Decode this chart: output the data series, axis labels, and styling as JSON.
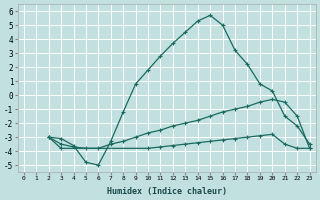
{
  "xlabel": "Humidex (Indice chaleur)",
  "bg_color": "#c2e0e0",
  "grid_color": "#b0d0d0",
  "line_color": "#1a6a60",
  "xlim": [
    -0.5,
    23.5
  ],
  "ylim": [
    -5.5,
    6.5
  ],
  "xticks": [
    0,
    1,
    2,
    3,
    4,
    5,
    6,
    7,
    8,
    9,
    10,
    11,
    12,
    13,
    14,
    15,
    16,
    17,
    18,
    19,
    20,
    21,
    22,
    23
  ],
  "yticks": [
    -5,
    -4,
    -3,
    -2,
    -1,
    0,
    1,
    2,
    3,
    4,
    5,
    6
  ],
  "line1_x": [
    2,
    3,
    4,
    5,
    6,
    7,
    8,
    9,
    10,
    11,
    12,
    13,
    14,
    15,
    16,
    17,
    18,
    19,
    20,
    21,
    22,
    23
  ],
  "line1_y": [
    -3.0,
    -3.1,
    -3.6,
    -4.8,
    -5.0,
    -3.3,
    -1.2,
    0.8,
    1.8,
    2.8,
    3.7,
    4.5,
    5.3,
    5.7,
    5.0,
    3.2,
    2.2,
    0.8,
    0.3,
    -1.5,
    -2.2,
    -3.5
  ],
  "line2_x": [
    2,
    3,
    4,
    5,
    6,
    7,
    8,
    9,
    10,
    11,
    12,
    13,
    14,
    15,
    16,
    17,
    18,
    19,
    20,
    21,
    22,
    23
  ],
  "line2_y": [
    -3.0,
    -3.5,
    -3.7,
    -3.8,
    -3.8,
    -3.5,
    -3.3,
    -3.0,
    -2.7,
    -2.5,
    -2.2,
    -2.0,
    -1.8,
    -1.5,
    -1.2,
    -1.0,
    -0.8,
    -0.5,
    -0.3,
    -0.5,
    -1.5,
    -3.8
  ],
  "line3_x": [
    2,
    3,
    10,
    11,
    12,
    13,
    14,
    15,
    16,
    17,
    18,
    19,
    20,
    21,
    22,
    23
  ],
  "line3_y": [
    -3.0,
    -3.8,
    -3.8,
    -3.7,
    -3.6,
    -3.5,
    -3.4,
    -3.3,
    -3.2,
    -3.1,
    -3.0,
    -2.9,
    -2.8,
    -3.5,
    -3.8,
    -3.8
  ]
}
